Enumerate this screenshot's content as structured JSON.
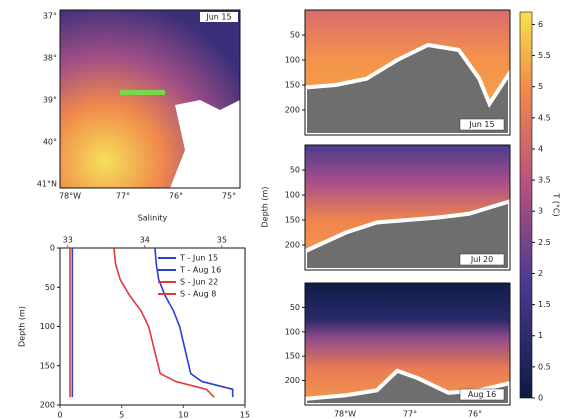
{
  "chart_data": [
    {
      "type": "map",
      "label": "Jun 15",
      "xticks": [
        "78°W",
        "77°",
        "76°",
        "75°"
      ],
      "yticks": [
        "41°N",
        "40°",
        "39°",
        "38°",
        "37°"
      ]
    },
    {
      "type": "line",
      "xlabel_top": "Salinity",
      "ylabel": "Depth (m)",
      "depths": [
        0,
        20,
        40,
        60,
        80,
        100,
        120,
        140,
        160,
        170,
        180,
        190
      ],
      "ylim": [
        0,
        200
      ],
      "yticks": [
        0,
        50,
        100,
        150,
        200
      ],
      "xlim": [
        0,
        15
      ],
      "xticks": [
        0,
        5,
        10,
        15
      ],
      "x2lim": [
        32.9,
        35.3
      ],
      "x2ticks": [
        33,
        34,
        35
      ],
      "legend": "upper right",
      "series": [
        {
          "name": "T - Jun 15",
          "color": "#2a3fd6",
          "values": [
            1.0,
            1.0,
            1.0,
            1.0,
            1.0,
            1.0,
            1.0,
            1.0,
            1.0,
            1.0,
            1.0,
            1.0
          ]
        },
        {
          "name": "T - Aug 16",
          "color": "#2a3fd6",
          "values": [
            7.7,
            7.8,
            8.0,
            8.5,
            9.2,
            9.7,
            10.0,
            10.3,
            10.6,
            11.5,
            14.0,
            14.0
          ]
        },
        {
          "name": "S - Jun 22",
          "color": "#e0393b",
          "axis": "x2",
          "values": [
            33.03,
            33.03,
            33.03,
            33.03,
            33.03,
            33.03,
            33.03,
            33.03,
            33.03,
            33.03,
            33.03,
            33.03
          ]
        },
        {
          "name": "S - Aug 8",
          "color": "#e0393b",
          "axis": "x2",
          "values": [
            33.6,
            33.62,
            33.68,
            33.8,
            33.95,
            34.05,
            34.1,
            34.15,
            34.2,
            34.4,
            34.8,
            34.9
          ]
        }
      ]
    },
    {
      "type": "section",
      "ylabel": "Depth (m)",
      "label": "Jun 15",
      "ylim": [
        0,
        250
      ],
      "yticks": [
        50,
        100,
        150,
        200
      ]
    },
    {
      "type": "section",
      "label": "Jul 20",
      "ylim": [
        0,
        250
      ],
      "yticks": [
        50,
        100,
        150,
        200
      ]
    },
    {
      "type": "section",
      "label": "Aug 16",
      "ylim": [
        0,
        250
      ],
      "yticks": [
        50,
        100,
        150,
        200
      ],
      "xticks": [
        "78°W",
        "77°",
        "76°"
      ]
    },
    {
      "type": "colorbar",
      "label": "T (°C)",
      "ylim": [
        0,
        6.2
      ],
      "yticks": [
        0,
        0.5,
        1,
        1.5,
        2,
        2.5,
        3,
        3.5,
        4,
        4.5,
        5,
        5.5,
        6
      ]
    }
  ]
}
